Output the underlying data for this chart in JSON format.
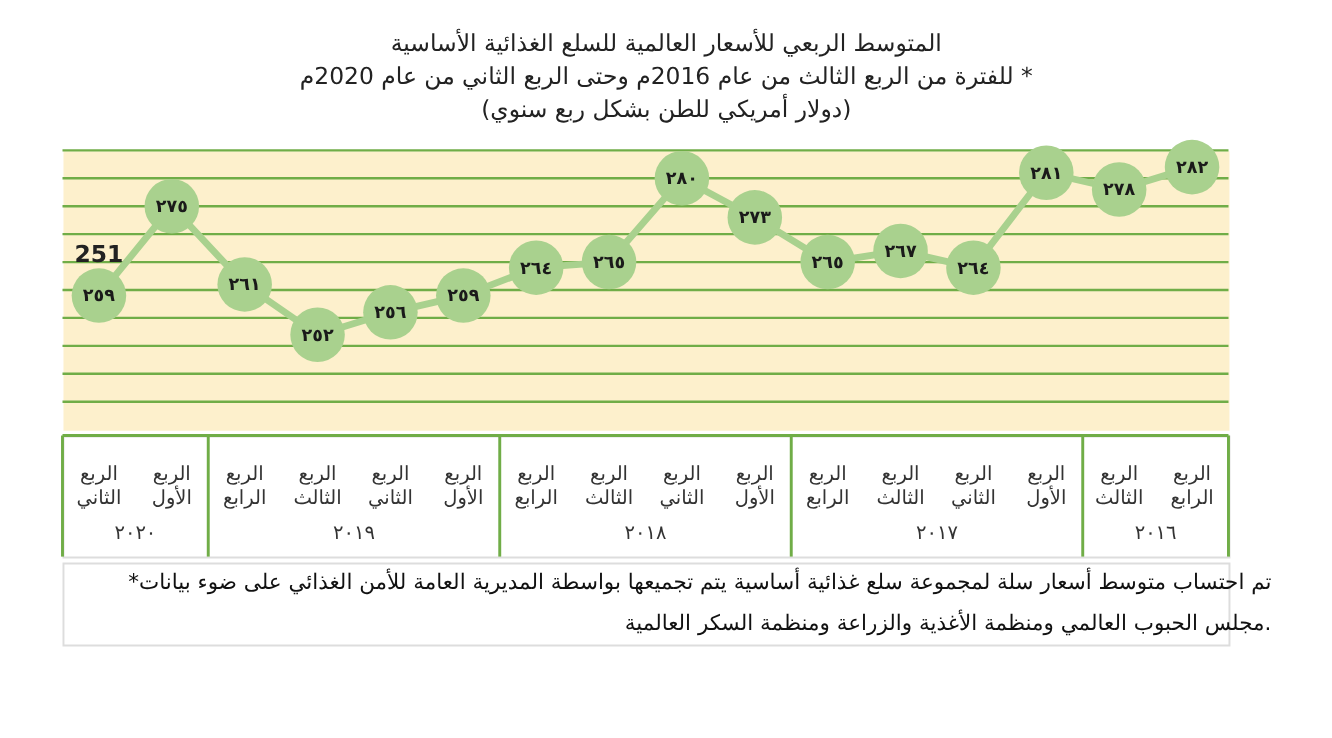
{
  "chart_data": {
    "type": "line",
    "title": [
      "المتوسط الربعي للأسعار العالمية للسلع الغذائية الأساسية",
      "للفترة من الربع الثالث من عام 2016م وحتى الربع الثاني من عام 2020م *",
      "(دولار أمريكي للطن بشكل ربع سنوي)"
    ],
    "categories": [
      "الربع الثاني",
      "الربع الأول",
      "الربع الرابع",
      "الربع الثالث",
      "الربع الثاني",
      "الربع الأول",
      "الربع الرابع",
      "الربع الثالث",
      "الربع الثاني",
      "الربع الأول",
      "الربع الرابع",
      "الربع الثالث",
      "الربع الثاني",
      "الربع الأول",
      "الربع الثالث",
      "الربع الرابع"
    ],
    "series": [
      {
        "color": "#a9d18e",
        "values": [
          259,
          275,
          261,
          252,
          256,
          259,
          264,
          265,
          280,
          273,
          265,
          267,
          264,
          281,
          278,
          282
        ],
        "value_labels": [
          "٢٥٩",
          "٢٧٥",
          "٢٦١",
          "٢٥٢",
          "٢٥٦",
          "٢٥٩",
          "٢٦٤",
          "٢٦٥",
          "٢٨٠",
          "٢٧٣",
          "٢٦٥",
          "٢٦٧",
          "٢٦٤",
          "٢٨١",
          "٢٧٨",
          "٢٨٢"
        ]
      }
    ],
    "ylim": [
      235,
      285
    ],
    "yticks": [
      {
        "value": 240,
        "label": null
      },
      {
        "value": 245,
        "label": null
      },
      {
        "value": 250,
        "label": null
      },
      {
        "value": 255,
        "label": null
      },
      {
        "value": 260,
        "label": null
      },
      {
        "value": 265,
        "label": null
      },
      {
        "value": 270,
        "label": null
      },
      {
        "value": 275,
        "label": null
      },
      {
        "value": 280,
        "label": null
      },
      {
        "value": 285,
        "label": null
      }
    ],
    "grid": "y",
    "tick_labels": "x",
    "marker": "circle",
    "line_style": "solid",
    "annotations": [
      "251",
      "٢٠٢٠",
      "٢٠١٩",
      "٢٠١٨",
      "٢٠١٧",
      "٢٠١٦",
      "*تم احتساب متوسط أسعار سلة لمجموعة سلع غذائية أساسية يتم تجميعها بواسطة المديرية العامة للأمن الغذائي على ضوء بيانات",
      "مجلس الحبوب العالمي ومنظمة الأغذية والزراعة ومنظمة السكر العالمية."
    ]
  }
}
